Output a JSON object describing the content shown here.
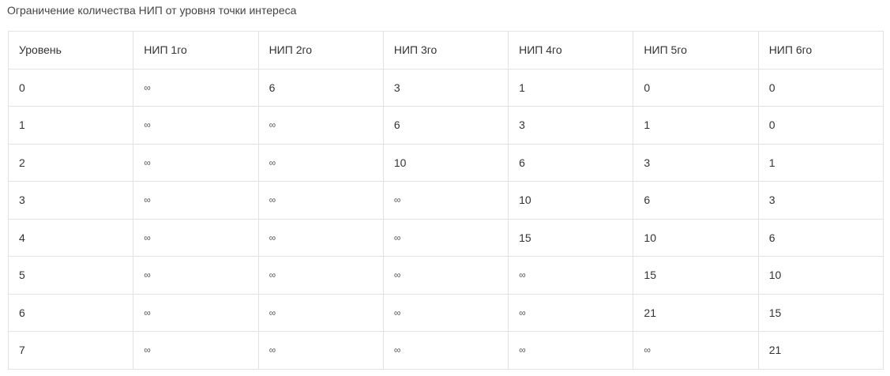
{
  "caption": "Ограничение количества НИП от уровня точки интереса",
  "table": {
    "headers": [
      "Уровень",
      "НИП 1го",
      "НИП 2го",
      "НИП 3го",
      "НИП 4го",
      "НИП 5го",
      "НИП 6го"
    ],
    "rows": [
      [
        "0",
        "∞",
        "6",
        "3",
        "1",
        "0",
        "0"
      ],
      [
        "1",
        "∞",
        "∞",
        "6",
        "3",
        "1",
        "0"
      ],
      [
        "2",
        "∞",
        "∞",
        "10",
        "6",
        "3",
        "1"
      ],
      [
        "3",
        "∞",
        "∞",
        "∞",
        "10",
        "6",
        "3"
      ],
      [
        "4",
        "∞",
        "∞",
        "∞",
        "15",
        "10",
        "6"
      ],
      [
        "5",
        "∞",
        "∞",
        "∞",
        "∞",
        "15",
        "10"
      ],
      [
        "6",
        "∞",
        "∞",
        "∞",
        "∞",
        "21",
        "15"
      ],
      [
        "7",
        "∞",
        "∞",
        "∞",
        "∞",
        "∞",
        "21"
      ]
    ]
  }
}
